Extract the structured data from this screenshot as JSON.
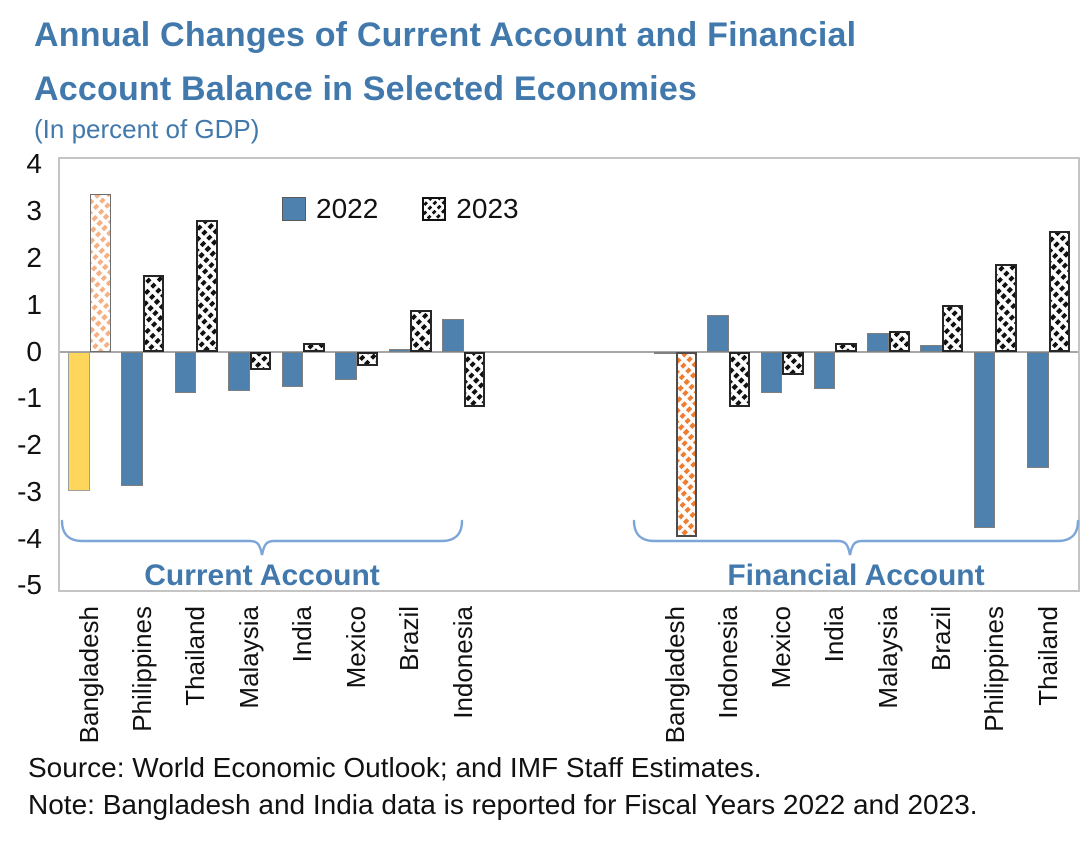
{
  "title": {
    "line1": "Annual Changes of Current Account and Financial",
    "line2": "Account Balance in Selected Economies"
  },
  "subtitle": "(In percent of GDP)",
  "legend": {
    "items": [
      {
        "label": "2022",
        "style": "solid-blue"
      },
      {
        "label": "2023",
        "style": "black-hatch"
      }
    ]
  },
  "axis": {
    "y_ticks": [
      4,
      3,
      2,
      1,
      0,
      -1,
      -2,
      -3,
      -4,
      -5
    ],
    "plot_max": 4.16,
    "plot_min": -5.14
  },
  "colors": {
    "title_blue": "#4279AD",
    "bar_blue": "#4E81AE",
    "bar_yellow": "#FDD65B",
    "hatch_black": "#111111",
    "hatch_orange": "#ED7D31",
    "hatch_light_orange": "#F5B183",
    "zero_line": "#A6A6A6",
    "bracket_blue": "#7CA5D9"
  },
  "chart_data": {
    "type": "bar",
    "title": "Annual Changes of Current Account and Financial Account Balance in Selected Economies",
    "subtitle": "(In percent of GDP)",
    "ylabel": "Percent of GDP",
    "ylim": [
      -5,
      4
    ],
    "grid": false,
    "legend_position": "top-center",
    "series_names": [
      "2022",
      "2023"
    ],
    "default_styles": [
      "blue-solid",
      "black-hatch"
    ],
    "groups": [
      {
        "label": "Current Account",
        "categories": [
          "Bangladesh",
          "Philippines",
          "Thailand",
          "Malaysia",
          "India",
          "Mexico",
          "Brazil",
          "Indonesia"
        ],
        "series": [
          {
            "name": "2022",
            "values": [
              -3.0,
              -2.9,
              -0.9,
              -0.85,
              -0.75,
              -0.6,
              0.05,
              0.7
            ]
          },
          {
            "name": "2023",
            "values": [
              3.4,
              1.65,
              2.85,
              -0.4,
              0.2,
              -0.3,
              0.9,
              -1.2
            ]
          }
        ],
        "highlight": {
          "index": 0,
          "series_styles": [
            "yellow-solid",
            "orange-light-hatch"
          ]
        }
      },
      {
        "label": "Financial Account",
        "categories": [
          "Bangladesh",
          "Indonesia",
          "Mexico",
          "India",
          "Malaysia",
          "Brazil",
          "Philippines",
          "Thailand"
        ],
        "series": [
          {
            "name": "2022",
            "values": [
              -0.05,
              0.8,
              -0.9,
              -0.8,
              0.4,
              0.15,
              -3.8,
              -2.5
            ]
          },
          {
            "name": "2023",
            "values": [
              -4.0,
              -1.2,
              -0.5,
              0.2,
              0.45,
              1.0,
              1.9,
              2.6
            ]
          }
        ],
        "highlight": {
          "index": 0,
          "series_styles": [
            "blue-solid",
            "orange-hatch"
          ]
        }
      }
    ]
  },
  "footer": {
    "source": "Source: World Economic Outlook; and IMF Staff Estimates.",
    "note": "Note: Bangladesh and India data is reported for Fiscal Years 2022 and 2023."
  }
}
